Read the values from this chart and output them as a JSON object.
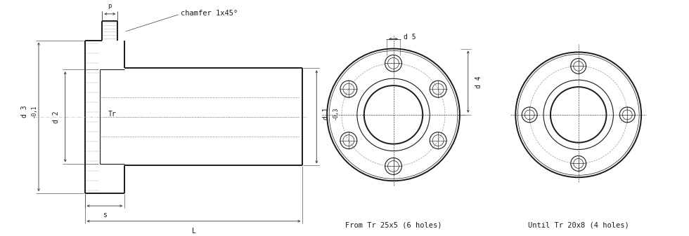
{
  "bg_color": "#ffffff",
  "line_color": "#1a1a1a",
  "dim_color": "#333333",
  "dashed_color": "#999999",
  "chamfer_text": "chamfer 1x45°",
  "label_d1": "d 1",
  "label_d2": "d 2",
  "label_d3": "d 3",
  "label_d4": "d 4",
  "label_d5": "d 5",
  "label_Tr": "Tr",
  "label_s": "s",
  "label_p": "p",
  "label_L": "L",
  "label_d1_tol": "-0,3",
  "label_d3_tol": "-0,1",
  "caption_left": "From Tr 25x5 (6 holes)",
  "caption_right": "Until Tr 20x8 (4 holes)"
}
